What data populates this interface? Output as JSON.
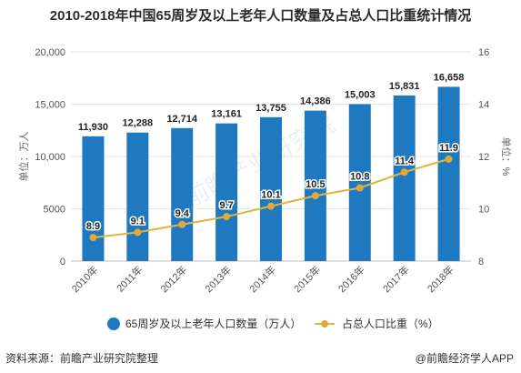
{
  "title": "2010-2018年中国65周岁及以上老年人口数量及占总人口比重统计情况",
  "source": "资料来源：前瞻产业研究院整理",
  "brand": "@前瞻经济学人APP",
  "watermark": "前瞻产业研究院",
  "colors": {
    "bar": "#1e79c0",
    "line": "#e5b33d",
    "marker": "#e0a93a",
    "grid": "#e6e6e6"
  },
  "chart_data": {
    "type": "bar",
    "categories": [
      "2010年",
      "2011年",
      "2012年",
      "2013年",
      "2014年",
      "2015年",
      "2016年",
      "2017年",
      "2018年"
    ],
    "series": [
      {
        "name": "65周岁及以上老年人口数量（万人）",
        "type": "bar",
        "axis": "left",
        "values": [
          11930,
          12288,
          12714,
          13161,
          13755,
          14386,
          15003,
          15831,
          16658
        ],
        "labels": [
          "11,930",
          "12,288",
          "12,714",
          "13,161",
          "13,755",
          "14,386",
          "15,003",
          "15,831",
          "16,658"
        ]
      },
      {
        "name": "占总人口比重（%）",
        "type": "line",
        "axis": "right",
        "values": [
          8.9,
          9.1,
          9.4,
          9.7,
          10.1,
          10.5,
          10.8,
          11.4,
          11.9
        ],
        "labels": [
          "8.9",
          "9.1",
          "9.4",
          "9.7",
          "10.1",
          "10.5",
          "10.8",
          "11.4",
          "11.9"
        ]
      }
    ],
    "ylabel_left": "单位：万人",
    "ylabel_right": "单位：%",
    "ylim_left": [
      0,
      20000
    ],
    "ylim_right": [
      8,
      16
    ],
    "yticks_left": [
      "0",
      "5000",
      "10,000",
      "15,000",
      "20,000"
    ],
    "yticks_left_values": [
      0,
      5000,
      10000,
      15000,
      20000
    ],
    "yticks_right": [
      "8",
      "10",
      "12",
      "14",
      "16"
    ],
    "yticks_right_values": [
      8,
      10,
      12,
      14,
      16
    ],
    "grid": true,
    "legend_position": "bottom"
  }
}
